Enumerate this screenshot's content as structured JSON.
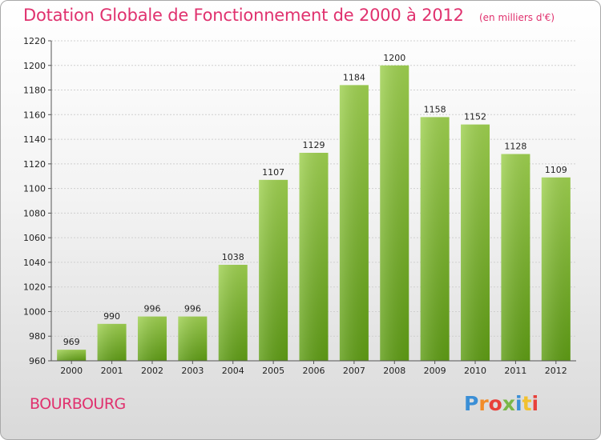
{
  "chart_data": {
    "type": "bar",
    "title": "Dotation Globale de Fonctionnement de 2000 à 2012",
    "subtitle": "(en milliers d'€)",
    "categories": [
      "2000",
      "2001",
      "2002",
      "2003",
      "2004",
      "2005",
      "2006",
      "2007",
      "2008",
      "2009",
      "2010",
      "2011",
      "2012"
    ],
    "values": [
      969,
      990,
      996,
      996,
      1038,
      1107,
      1129,
      1184,
      1200,
      1158,
      1152,
      1128,
      1109
    ],
    "ylim": [
      960,
      1220
    ],
    "yticks": [
      960,
      980,
      1000,
      1020,
      1040,
      1060,
      1080,
      1100,
      1120,
      1140,
      1160,
      1180,
      1200,
      1220
    ],
    "grid": true,
    "bar_color_top": "#9fd150",
    "bar_color_bottom": "#5f9d15"
  },
  "footer": {
    "commune": "BOURBOURG",
    "logo_text": "Proxiti",
    "logo_colors": [
      "#3b8fd6",
      "#f28c28",
      "#e8403a",
      "#7ab648",
      "#3b8fd6",
      "#f2c12e",
      "#e8403a"
    ]
  }
}
